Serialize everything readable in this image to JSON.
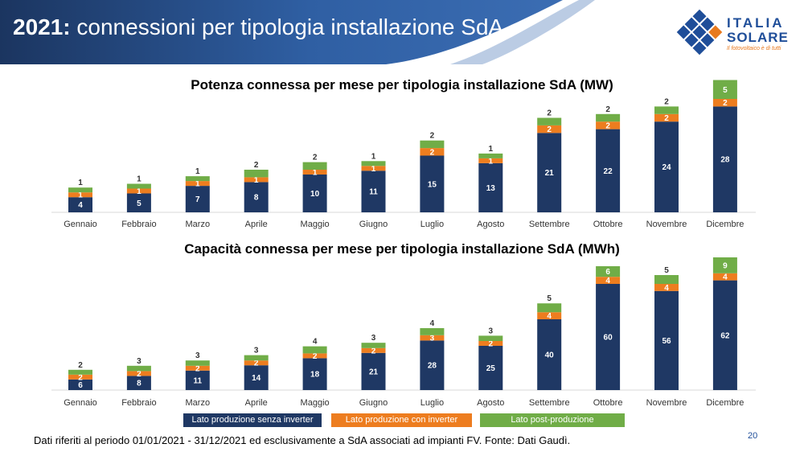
{
  "header": {
    "year": "2021:",
    "subtitle": "connessioni per tipologia installazione SdA"
  },
  "logo": {
    "line1": "ITALIA",
    "line2": "SOLARE",
    "tagline": "Il fotovoltaico è di tutti"
  },
  "colors": {
    "navy": "#1f3864",
    "orange": "#ed7d1f",
    "green": "#70ad47",
    "header_dark": "#1b3560",
    "header_light": "#3b6db3"
  },
  "chart_data": [
    {
      "type": "bar",
      "stacked": true,
      "title": "Potenza connessa per mese per tipologia installazione SdA (MW)",
      "categories": [
        "Gennaio",
        "Febbraio",
        "Marzo",
        "Aprile",
        "Maggio",
        "Giugno",
        "Luglio",
        "Agosto",
        "Settembre",
        "Ottobre",
        "Novembre",
        "Dicembre"
      ],
      "series": [
        {
          "name": "Lato produzione senza inverter",
          "color": "#1f3864",
          "values": [
            4,
            5,
            7,
            8,
            10,
            11,
            15,
            13,
            21,
            22,
            24,
            28
          ]
        },
        {
          "name": "Lato produzione con inverter",
          "color": "#ed7d1f",
          "values": [
            1,
            1,
            1,
            1,
            1,
            1,
            2,
            1,
            2,
            2,
            2,
            2
          ]
        },
        {
          "name": "Lato post-produzione",
          "color": "#70ad47",
          "values": [
            1,
            1,
            1,
            2,
            2,
            1,
            2,
            1,
            2,
            2,
            2,
            5
          ]
        }
      ],
      "xlabel": "",
      "ylabel": ""
    },
    {
      "type": "bar",
      "stacked": true,
      "title": "Capacità connessa per mese per tipologia installazione SdA (MWh)",
      "categories": [
        "Gennaio",
        "Febbraio",
        "Marzo",
        "Aprile",
        "Maggio",
        "Giugno",
        "Luglio",
        "Agosto",
        "Settembre",
        "Ottobre",
        "Novembre",
        "Dicembre"
      ],
      "series": [
        {
          "name": "Lato produzione senza inverter",
          "color": "#1f3864",
          "values": [
            6,
            8,
            11,
            14,
            18,
            21,
            28,
            25,
            40,
            60,
            56,
            62
          ]
        },
        {
          "name": "Lato produzione con inverter",
          "color": "#ed7d1f",
          "values": [
            2,
            2,
            2,
            2,
            2,
            2,
            3,
            2,
            4,
            4,
            4,
            4
          ]
        },
        {
          "name": "Lato post-produzione",
          "color": "#70ad47",
          "values": [
            2,
            3,
            3,
            3,
            4,
            3,
            4,
            3,
            5,
            6,
            5,
            9
          ]
        }
      ],
      "xlabel": "",
      "ylabel": ""
    }
  ],
  "legend": [
    {
      "label": "Lato produzione senza inverter",
      "color": "#1f3864"
    },
    {
      "label": "Lato produzione con inverter",
      "color": "#ed7d1f"
    },
    {
      "label": "Lato post-produzione",
      "color": "#70ad47"
    }
  ],
  "footnote": "Dati riferiti al periodo 01/01/2021 - 31/12/2021 ed esclusivamente a SdA associati ad impianti FV. Fonte: Dati Gaudì.",
  "page_number": "20"
}
